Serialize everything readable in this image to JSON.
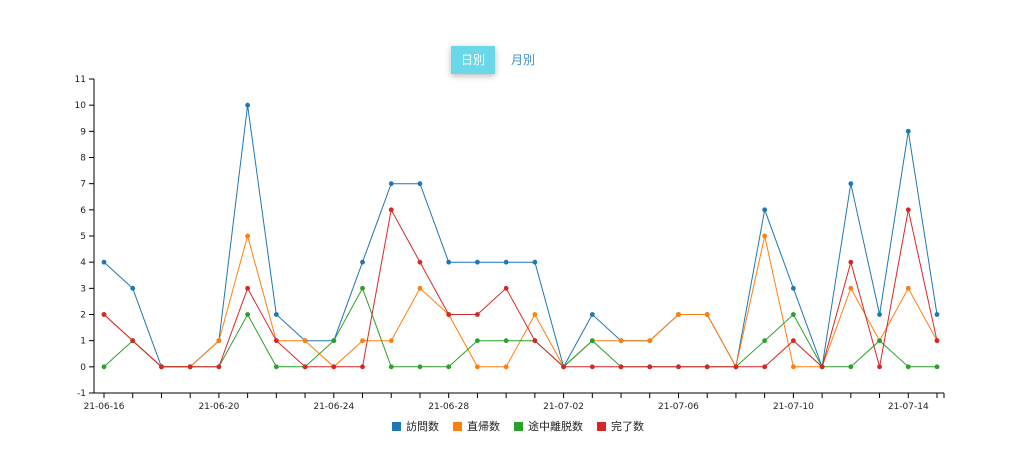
{
  "toggle": {
    "daily_label": "日別",
    "monthly_label": "月別",
    "active": "daily"
  },
  "chart_data": {
    "type": "line",
    "title": "",
    "xlabel": "",
    "ylabel": "",
    "ylim": [
      -1,
      11
    ],
    "yticks": [
      -1,
      0,
      1,
      2,
      3,
      4,
      5,
      6,
      7,
      8,
      9,
      10,
      11
    ],
    "x": [
      "21-06-16",
      "21-06-17",
      "21-06-18",
      "21-06-19",
      "21-06-20",
      "21-06-21",
      "21-06-22",
      "21-06-23",
      "21-06-24",
      "21-06-25",
      "21-06-26",
      "21-06-27",
      "21-06-28",
      "21-06-29",
      "21-06-30",
      "21-07-01",
      "21-07-02",
      "21-07-03",
      "21-07-04",
      "21-07-05",
      "21-07-06",
      "21-07-07",
      "21-07-08",
      "21-07-09",
      "21-07-10",
      "21-07-11",
      "21-07-12",
      "21-07-13",
      "21-07-14",
      "21-07-15"
    ],
    "xticks": [
      "21-06-16",
      "21-06-20",
      "21-06-24",
      "21-06-28",
      "21-07-02",
      "21-07-06",
      "21-07-10",
      "21-07-14"
    ],
    "grid": false,
    "legend_position": "bottom",
    "series": [
      {
        "name": "訪問数",
        "color": "#1f77b4",
        "values": [
          4,
          3,
          0,
          0,
          1,
          10,
          2,
          1,
          1,
          4,
          7,
          7,
          4,
          4,
          4,
          4,
          0,
          2,
          1,
          1,
          2,
          2,
          0,
          6,
          3,
          0,
          7,
          2,
          9,
          2
        ]
      },
      {
        "name": "直帰数",
        "color": "#ff7f0e",
        "values": [
          2,
          1,
          0,
          0,
          1,
          5,
          1,
          1,
          0,
          1,
          1,
          3,
          2,
          0,
          0,
          2,
          0,
          1,
          1,
          1,
          2,
          2,
          0,
          5,
          0,
          0,
          3,
          1,
          3,
          1
        ]
      },
      {
        "name": "途中離脱数",
        "color": "#2ca02c",
        "values": [
          0,
          1,
          0,
          0,
          0,
          2,
          0,
          0,
          1,
          3,
          0,
          0,
          0,
          1,
          1,
          1,
          0,
          1,
          0,
          0,
          0,
          0,
          0,
          1,
          2,
          0,
          0,
          1,
          0,
          0
        ]
      },
      {
        "name": "完了数",
        "color": "#d62728",
        "values": [
          2,
          1,
          0,
          0,
          0,
          3,
          1,
          0,
          0,
          0,
          6,
          4,
          2,
          2,
          3,
          1,
          0,
          0,
          0,
          0,
          0,
          0,
          0,
          0,
          1,
          0,
          4,
          0,
          6,
          1
        ]
      }
    ]
  }
}
